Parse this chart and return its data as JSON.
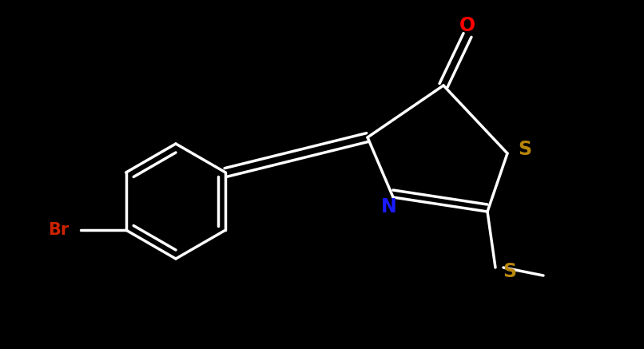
{
  "background_color": "#000000",
  "bond_color": "#ffffff",
  "bond_width": 2.5,
  "fig_width": 8.06,
  "fig_height": 4.37,
  "dpi": 100,
  "colors": {
    "Br": "#cc2200",
    "O": "#ff0000",
    "N": "#1a1aff",
    "S": "#b8860b",
    "C": "#ffffff",
    "bond": "#ffffff"
  },
  "xlim": [
    0,
    8.06
  ],
  "ylim": [
    0,
    4.37
  ]
}
